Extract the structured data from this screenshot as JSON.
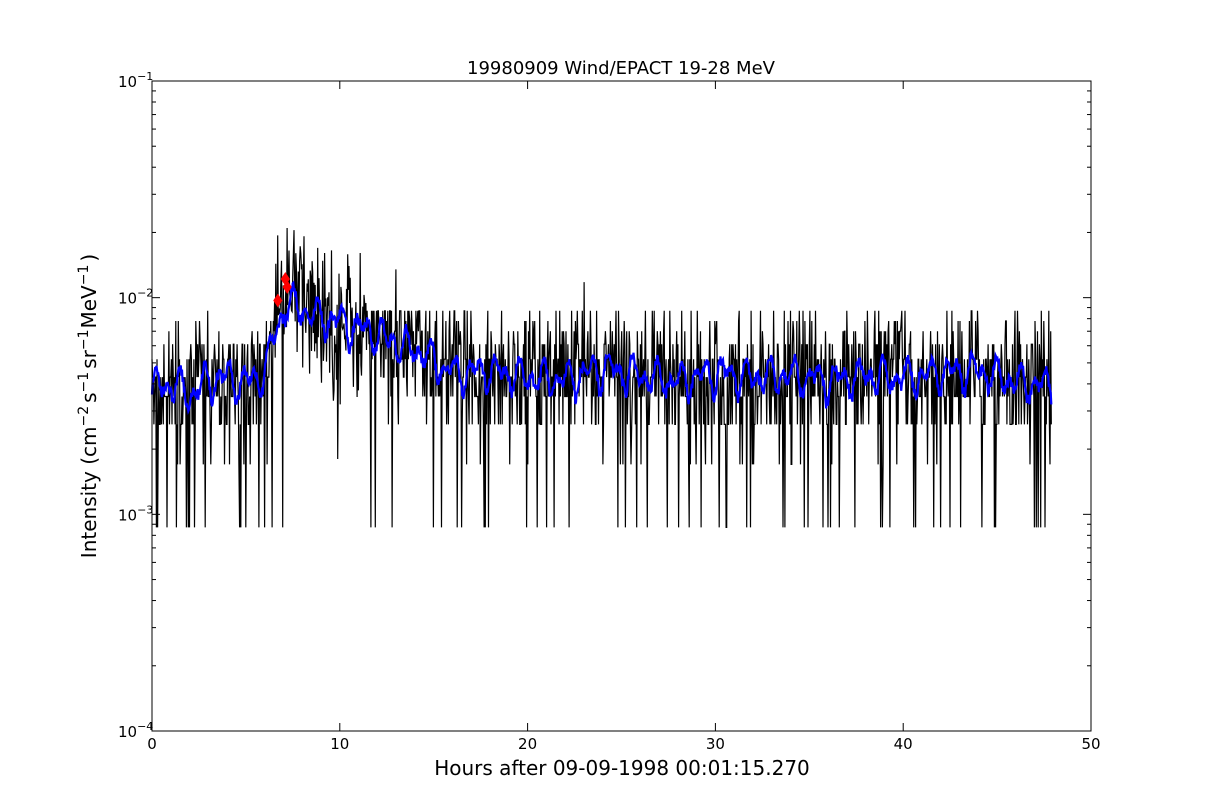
{
  "chart_data": {
    "type": "line",
    "title": "19980909 Wind/EPACT 19-28 MeV",
    "xlabel": "Hours after 09-09-1998 00:01:15.270",
    "ylabel": {
      "prefix": "Intensity (cm",
      "sup1": "−2",
      "mid1": "s",
      "sup2": "−1",
      "mid2": "sr",
      "sup3": "−1",
      "mid3": "MeV",
      "sup4": "−1",
      "suffix": ")"
    },
    "xlim": [
      0,
      50
    ],
    "ylim": [
      0.0001,
      0.1
    ],
    "yscale": "log",
    "grid": false,
    "x_ticks": [
      "0",
      "10",
      "20",
      "30",
      "40",
      "50"
    ],
    "x_tick_values": [
      0,
      10,
      20,
      30,
      40,
      50
    ],
    "y_ticks": [
      {
        "value": 0.0001,
        "base": "10",
        "exp": "−4"
      },
      {
        "value": 0.001,
        "base": "10",
        "exp": "−3"
      },
      {
        "value": 0.01,
        "base": "10",
        "exp": "−2"
      },
      {
        "value": 0.1,
        "base": "10",
        "exp": "−1"
      }
    ],
    "series": [
      {
        "role": "raw",
        "color": "#000000",
        "x_range": [
          0,
          47.9
        ],
        "sample_step_hours": 0.0333,
        "baseline": [
          [
            0,
            0.0042
          ],
          [
            5.8,
            0.0042
          ],
          [
            6.3,
            0.006
          ],
          [
            6.8,
            0.0085
          ],
          [
            7.3,
            0.0105
          ],
          [
            8.5,
            0.009
          ],
          [
            10,
            0.0075
          ],
          [
            12,
            0.0068
          ],
          [
            14,
            0.0058
          ],
          [
            16,
            0.0046
          ],
          [
            18,
            0.0045
          ],
          [
            47.9,
            0.0043
          ]
        ],
        "levels": [
          0.00087,
          0.0017,
          0.0026,
          0.0035,
          0.0043,
          0.0052,
          0.0061,
          0.007,
          0.0078,
          0.0087
        ],
        "notable_peaks": [
          [
            7.55,
            0.0205
          ],
          [
            7.3,
            0.0165
          ],
          [
            6.9,
            0.0148
          ],
          [
            9.1,
            0.0148
          ],
          [
            10.5,
            0.014
          ],
          [
            13.0,
            0.0135
          ],
          [
            23.0,
            0.0118
          ],
          [
            7.95,
            0.0135
          ]
        ],
        "notable_dips": [
          [
            0.3,
            0.00087
          ],
          [
            0.8,
            0.00087
          ],
          [
            2.0,
            0.00087
          ],
          [
            5.7,
            0.00087
          ],
          [
            9.9,
            0.0018
          ],
          [
            11.9,
            0.00087
          ],
          [
            12.8,
            0.00087
          ],
          [
            16.5,
            0.00087
          ],
          [
            21.4,
            0.00087
          ],
          [
            25.2,
            0.00087
          ],
          [
            28.6,
            0.00087
          ],
          [
            33.7,
            0.00087
          ],
          [
            36.6,
            0.00087
          ],
          [
            38.8,
            0.00087
          ],
          [
            42.0,
            0.00087
          ],
          [
            44.2,
            0.00087
          ],
          [
            47.2,
            0.00087
          ]
        ]
      },
      {
        "role": "smoothed",
        "color": "#0000ff",
        "x_range": [
          0,
          47.9
        ],
        "trend": [
          [
            0,
            0.0038
          ],
          [
            1,
            0.0041
          ],
          [
            2,
            0.0036
          ],
          [
            3,
            0.0042
          ],
          [
            4,
            0.0043
          ],
          [
            5,
            0.0041
          ],
          [
            5.8,
            0.0044
          ],
          [
            6.3,
            0.0055
          ],
          [
            6.8,
            0.0078
          ],
          [
            7.2,
            0.0095
          ],
          [
            8,
            0.0088
          ],
          [
            9,
            0.0082
          ],
          [
            10,
            0.0078
          ],
          [
            11,
            0.0072
          ],
          [
            12,
            0.0068
          ],
          [
            13,
            0.0062
          ],
          [
            14,
            0.0058
          ],
          [
            15,
            0.0052
          ],
          [
            16,
            0.0045
          ],
          [
            18,
            0.0046
          ],
          [
            20,
            0.0043
          ],
          [
            22,
            0.0042
          ],
          [
            24,
            0.0047
          ],
          [
            26,
            0.0044
          ],
          [
            28,
            0.0041
          ],
          [
            30,
            0.0045
          ],
          [
            32,
            0.0043
          ],
          [
            34,
            0.0044
          ],
          [
            36,
            0.0042
          ],
          [
            38,
            0.0044
          ],
          [
            40,
            0.0043
          ],
          [
            42,
            0.0045
          ],
          [
            44,
            0.0046
          ],
          [
            46,
            0.0041
          ],
          [
            47.9,
            0.0039
          ]
        ]
      }
    ],
    "markers": {
      "color": "#ff0000",
      "points": [
        [
          6.7,
          0.0097
        ],
        [
          7.1,
          0.0122
        ],
        [
          7.2,
          0.0112
        ]
      ]
    }
  }
}
